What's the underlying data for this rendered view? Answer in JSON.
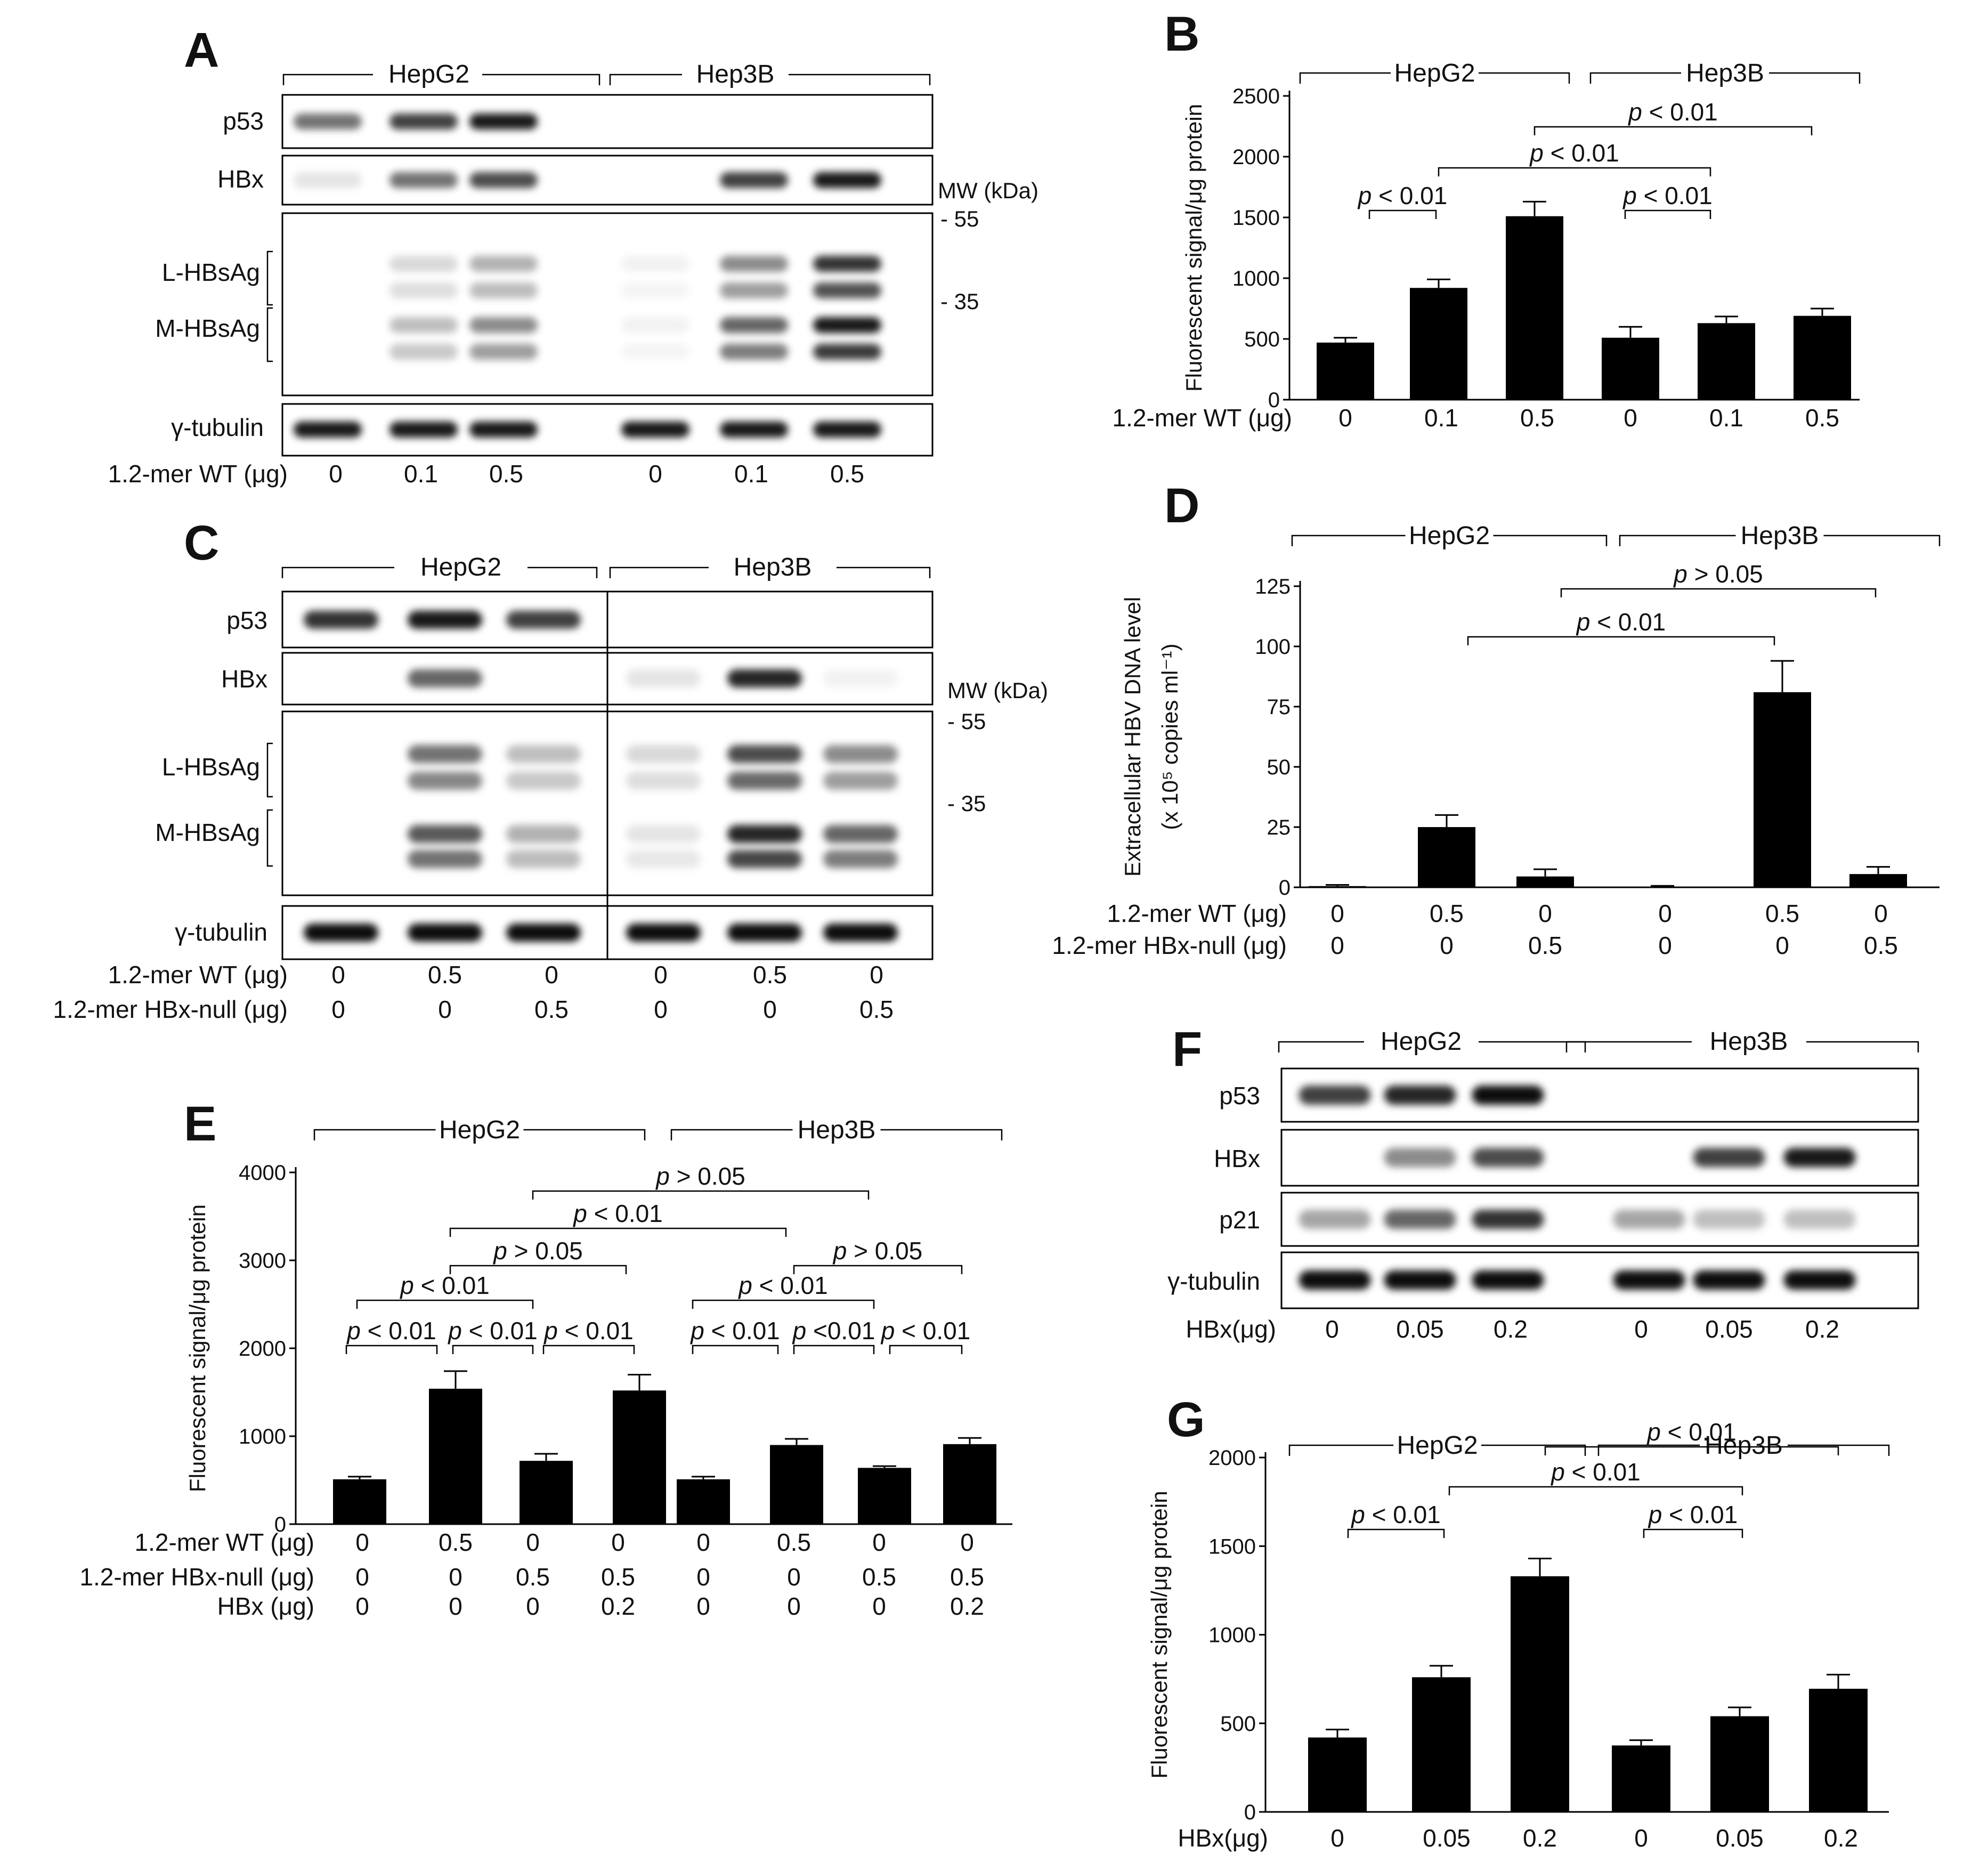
{
  "panels": {
    "A": {
      "letter": "A",
      "groups": [
        "HepG2",
        "Hep3B"
      ],
      "rows": [
        "p53",
        "HBx",
        "L-HBsAg",
        "M-HBsAg",
        "γ-tubulin"
      ],
      "mw_title": "MW (kDa)",
      "mw_marks": [
        "- 55",
        "- 35"
      ],
      "cond_labels": [
        "1.2-mer WT (μg)"
      ],
      "cond_values": [
        [
          "0",
          "0.1",
          "0.5",
          "0",
          "0.1",
          "0.5"
        ]
      ],
      "bands": {
        "p53": [
          0.55,
          0.75,
          0.9,
          0,
          0,
          0
        ],
        "HBx": [
          0.1,
          0.55,
          0.7,
          0,
          0.75,
          0.9
        ],
        "L-HBsAg": [
          0,
          0.15,
          0.3,
          0.05,
          0.45,
          0.8
        ],
        "M-HBsAg": [
          0,
          0.25,
          0.45,
          0.05,
          0.6,
          0.9
        ],
        "γ-tubulin": [
          0.9,
          0.9,
          0.9,
          0.9,
          0.9,
          0.9
        ]
      }
    },
    "C": {
      "letter": "C",
      "groups": [
        "HepG2",
        "Hep3B"
      ],
      "rows": [
        "p53",
        "HBx",
        "L-HBsAg",
        "M-HBsAg",
        "γ-tubulin"
      ],
      "mw_title": "MW (kDa)",
      "mw_marks": [
        "- 55",
        "- 35"
      ],
      "cond_labels": [
        "1.2-mer WT (μg)",
        "1.2-mer HBx-null (μg)"
      ],
      "cond_values": [
        [
          "0",
          "0.5",
          "0",
          "0",
          "0.5",
          "0"
        ],
        [
          "0",
          "0",
          "0.5",
          "0",
          "0",
          "0.5"
        ]
      ],
      "bands": {
        "p53": [
          0.8,
          0.9,
          0.75,
          0,
          0,
          0
        ],
        "HBx": [
          0,
          0.6,
          0,
          0.1,
          0.85,
          0.05
        ],
        "L-HBsAg": [
          0,
          0.55,
          0.25,
          0.15,
          0.7,
          0.45
        ],
        "M-HBsAg": [
          0,
          0.65,
          0.3,
          0.1,
          0.85,
          0.6
        ],
        "γ-tubulin": [
          0.95,
          0.95,
          0.95,
          0.95,
          0.95,
          0.95
        ]
      }
    },
    "F": {
      "letter": "F",
      "groups": [
        "HepG2",
        "Hep3B"
      ],
      "rows": [
        "p53",
        "HBx",
        "p21",
        "γ-tubulin"
      ],
      "cond_labels": [
        "HBx(μg)"
      ],
      "cond_values": [
        [
          "0",
          "0.05",
          "0.2",
          "0",
          "0.05",
          "0.2"
        ]
      ],
      "bands": {
        "p53": [
          0.75,
          0.85,
          0.95,
          0,
          0,
          0
        ],
        "HBx": [
          0,
          0.45,
          0.7,
          0,
          0.75,
          0.9
        ],
        "p21": [
          0.35,
          0.6,
          0.8,
          0.35,
          0.25,
          0.25
        ],
        "γ-tubulin": [
          0.95,
          0.95,
          0.95,
          0.95,
          0.95,
          0.95
        ]
      }
    }
  },
  "chart_data": [
    {
      "panel": "B",
      "type": "bar",
      "groups": [
        "HepG2",
        "Hep3B"
      ],
      "ylabel": "Fluorescent signal/μg protein",
      "ylim": [
        0,
        2500
      ],
      "yticks": [
        "0",
        "500",
        "1000",
        "1500",
        "2000",
        "2500"
      ],
      "cond_labels": [
        "1.2-mer WT (μg)"
      ],
      "cond_values": [
        [
          "0",
          "0.1",
          "0.5",
          "0",
          "0.1",
          "0.5"
        ]
      ],
      "values": [
        470,
        920,
        1510,
        510,
        630,
        690
      ],
      "errors": [
        40,
        70,
        120,
        90,
        55,
        60
      ],
      "comparisons": [
        {
          "a": 0,
          "b": 1,
          "text": "p < 0.01"
        },
        {
          "a": 3,
          "b": 4,
          "text": "p < 0.01"
        },
        {
          "a": 1,
          "b": 4,
          "text": "p < 0.01"
        },
        {
          "a": 2,
          "b": 5,
          "text": "p < 0.01"
        }
      ]
    },
    {
      "panel": "D",
      "type": "bar",
      "groups": [
        "HepG2",
        "Hep3B"
      ],
      "ylabel": "Extracellular HBV DNA level",
      "ylabel2": "(x 10⁵ copies ml⁻¹)",
      "ylim": [
        0,
        125
      ],
      "yticks": [
        "0",
        "25",
        "50",
        "75",
        "100",
        "125"
      ],
      "cond_labels": [
        "1.2-mer WT (μg)",
        "1.2-mer HBx-null (μg)"
      ],
      "cond_values": [
        [
          "0",
          "0.5",
          "0",
          "0",
          "0.5",
          "0"
        ],
        [
          "0",
          "0",
          "0.5",
          "0",
          "0",
          "0.5"
        ]
      ],
      "values": [
        0.5,
        25,
        4.5,
        0.3,
        81,
        5.5
      ],
      "errors": [
        0.5,
        5,
        3,
        0.3,
        13,
        3
      ],
      "comparisons": [
        {
          "a": 1,
          "b": 4,
          "text": "p < 0.01"
        },
        {
          "a": 2,
          "b": 5,
          "text": "p > 0.05"
        }
      ]
    },
    {
      "panel": "E",
      "type": "bar",
      "groups": [
        "HepG2",
        "Hep3B"
      ],
      "ylabel": "Fluorescent signal/μg protein",
      "ylim": [
        0,
        4000
      ],
      "yticks": [
        "0",
        "1000",
        "2000",
        "3000",
        "4000"
      ],
      "cond_labels": [
        "1.2-mer WT (μg)",
        "1.2-mer HBx-null (μg)",
        "HBx (μg)"
      ],
      "cond_values": [
        [
          "0",
          "0.5",
          "0",
          "0",
          "0",
          "0.5",
          "0",
          "0"
        ],
        [
          "0",
          "0",
          "0.5",
          "0.5",
          "0",
          "0",
          "0.5",
          "0.5"
        ],
        [
          "0",
          "0",
          "0",
          "0.2",
          "0",
          "0",
          "0",
          "0.2"
        ]
      ],
      "values": [
        510,
        1540,
        720,
        1520,
        510,
        900,
        640,
        910
      ],
      "errors": [
        30,
        200,
        80,
        180,
        30,
        70,
        20,
        70
      ],
      "comparisons": [
        {
          "a": 0,
          "b": 1,
          "text": "p < 0.01"
        },
        {
          "a": 1,
          "b": 2,
          "text": "p < 0.01"
        },
        {
          "a": 2,
          "b": 3,
          "text": "p < 0.01"
        },
        {
          "a": 4,
          "b": 5,
          "text": "p < 0.01"
        },
        {
          "a": 5,
          "b": 6,
          "text": "p  <0.01"
        },
        {
          "a": 6,
          "b": 7,
          "text": "p < 0.01"
        },
        {
          "a": 0,
          "b": 2,
          "text": "p < 0.01"
        },
        {
          "a": 1,
          "b": 3,
          "text": "p > 0.05"
        },
        {
          "a": 4,
          "b": 6,
          "text": "p < 0.01"
        },
        {
          "a": 5,
          "b": 7,
          "text": "p > 0.05"
        },
        {
          "a": 1,
          "b": 5,
          "text": "p < 0.01"
        },
        {
          "a": 2,
          "b": 6,
          "text": "p > 0.05"
        }
      ]
    },
    {
      "panel": "G",
      "type": "bar",
      "groups": [
        "HepG2",
        "Hep3B"
      ],
      "ylabel": "Fluorescent signal/μg protein",
      "ylim": [
        0,
        2000
      ],
      "yticks": [
        "0",
        "500",
        "1000",
        "1500",
        "2000"
      ],
      "cond_labels": [
        "HBx(μg)"
      ],
      "cond_values": [
        [
          "0",
          "0.05",
          "0.2",
          "0",
          "0.05",
          "0.2"
        ]
      ],
      "values": [
        420,
        760,
        1330,
        375,
        540,
        695
      ],
      "errors": [
        45,
        65,
        100,
        30,
        50,
        80
      ],
      "comparisons": [
        {
          "a": 0,
          "b": 1,
          "text": "p < 0.01"
        },
        {
          "a": 3,
          "b": 4,
          "text": "p < 0.01"
        },
        {
          "a": 1,
          "b": 4,
          "text": "p < 0.01"
        },
        {
          "a": 2,
          "b": 5,
          "text": "p < 0.01"
        }
      ]
    }
  ],
  "colors": {
    "bar": "#000000",
    "text": "#111111",
    "blot_background": "#ffffff",
    "band": "#000000"
  }
}
